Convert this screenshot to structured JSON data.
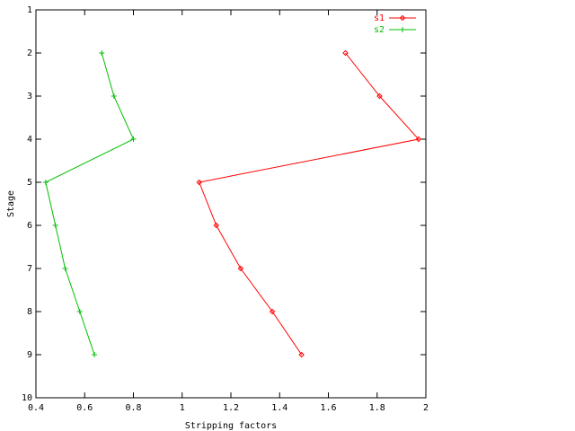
{
  "chart_data": {
    "type": "line",
    "xlabel": "Stripping factors",
    "ylabel": "Stage",
    "xlim": [
      0.4,
      2
    ],
    "xticks": [
      0.4,
      0.6,
      0.8,
      1,
      1.2,
      1.4,
      1.6,
      1.8,
      2
    ],
    "ylim": [
      1,
      10
    ],
    "yticks": [
      1,
      2,
      3,
      4,
      5,
      6,
      7,
      8,
      9,
      10
    ],
    "y_reversed": true,
    "legend": "top-right",
    "series": [
      {
        "name": "s1",
        "color": "#ff0000",
        "marker": "diamond",
        "x": [
          1.67,
          1.81,
          1.97,
          1.07,
          1.14,
          1.24,
          1.37,
          1.49
        ],
        "values": [
          2,
          3,
          4,
          5,
          6,
          7,
          8,
          9
        ]
      },
      {
        "name": "s2",
        "color": "#00c000",
        "marker": "plus",
        "x": [
          0.67,
          0.72,
          0.8,
          0.44,
          0.48,
          0.52,
          0.58,
          0.64
        ],
        "values": [
          2,
          3,
          4,
          5,
          6,
          7,
          8,
          9
        ]
      }
    ]
  }
}
